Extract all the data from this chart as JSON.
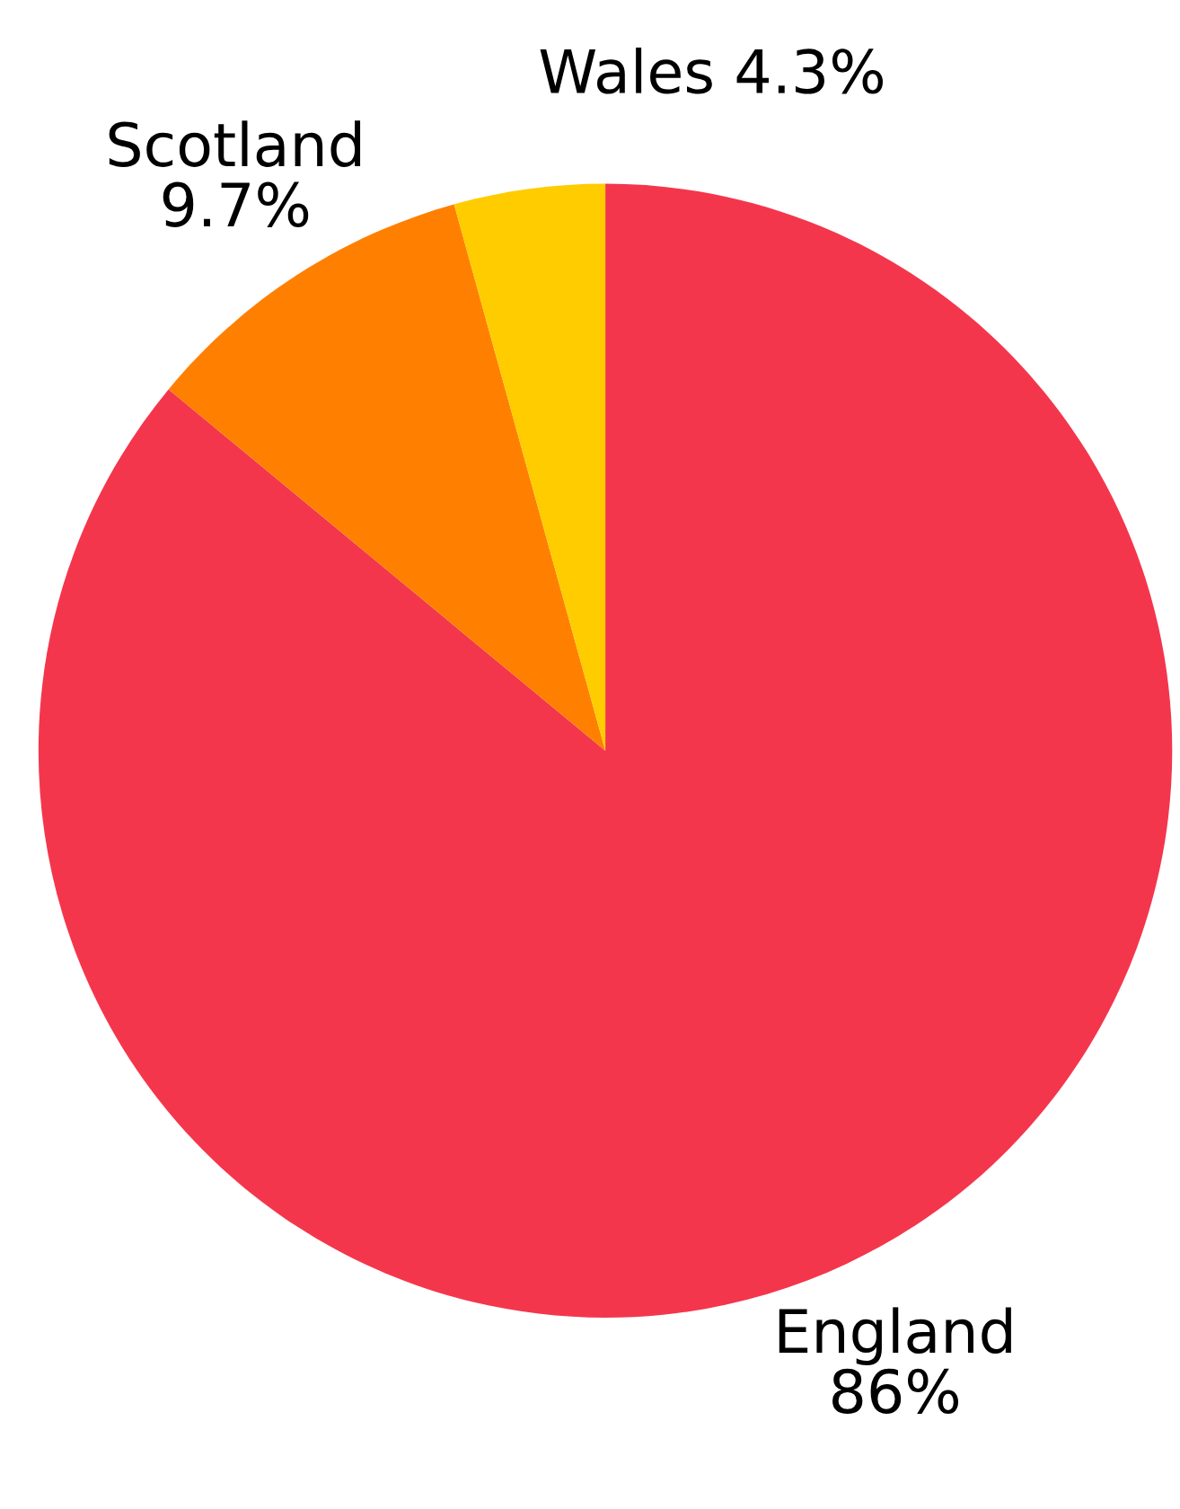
{
  "chart_data": {
    "type": "pie",
    "categories": [
      "England",
      "Scotland",
      "Wales"
    ],
    "values": [
      86,
      9.7,
      4.3
    ],
    "colors": [
      "#f4364c",
      "#ff8000",
      "#ffcc00"
    ],
    "value_labels": [
      "86%",
      "9.7%",
      "4.3%"
    ]
  }
}
